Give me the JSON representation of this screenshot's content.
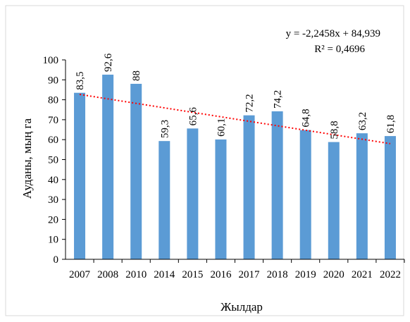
{
  "chart_data": {
    "type": "bar",
    "categories": [
      "2007",
      "2008",
      "2010",
      "2014",
      "2015",
      "2016",
      "2017",
      "2018",
      "2019",
      "2020",
      "2021",
      "2022"
    ],
    "values": [
      83.5,
      92.6,
      88,
      59.3,
      65.6,
      60.1,
      72.2,
      74.2,
      64.8,
      58.8,
      63.2,
      61.8
    ],
    "value_labels": [
      "83,5",
      "92,6",
      "88",
      "59,3",
      "65,6",
      "60,1",
      "72,2",
      "74,2",
      "64,8",
      "58,8",
      "63,2",
      "61,8"
    ],
    "y_ticks": [
      0,
      10,
      20,
      30,
      40,
      50,
      60,
      70,
      80,
      90,
      100
    ],
    "ylim": [
      0,
      100
    ],
    "xlabel": "Жылдар",
    "ylabel": "Ауданы, мың га",
    "title": "",
    "grid": false,
    "legend": "none",
    "trendline": {
      "type": "linear",
      "slope": -2.2458,
      "intercept": 84.939,
      "equation_label": "y = -2,2458x + 84,939",
      "r2_label": "R² = 0,4696",
      "color": "#ff0000",
      "style": "dotted"
    },
    "colors": {
      "bar": "#5b9bd5",
      "axis": "#000000",
      "text": "#000000",
      "frame": "#d9d9d9"
    }
  }
}
